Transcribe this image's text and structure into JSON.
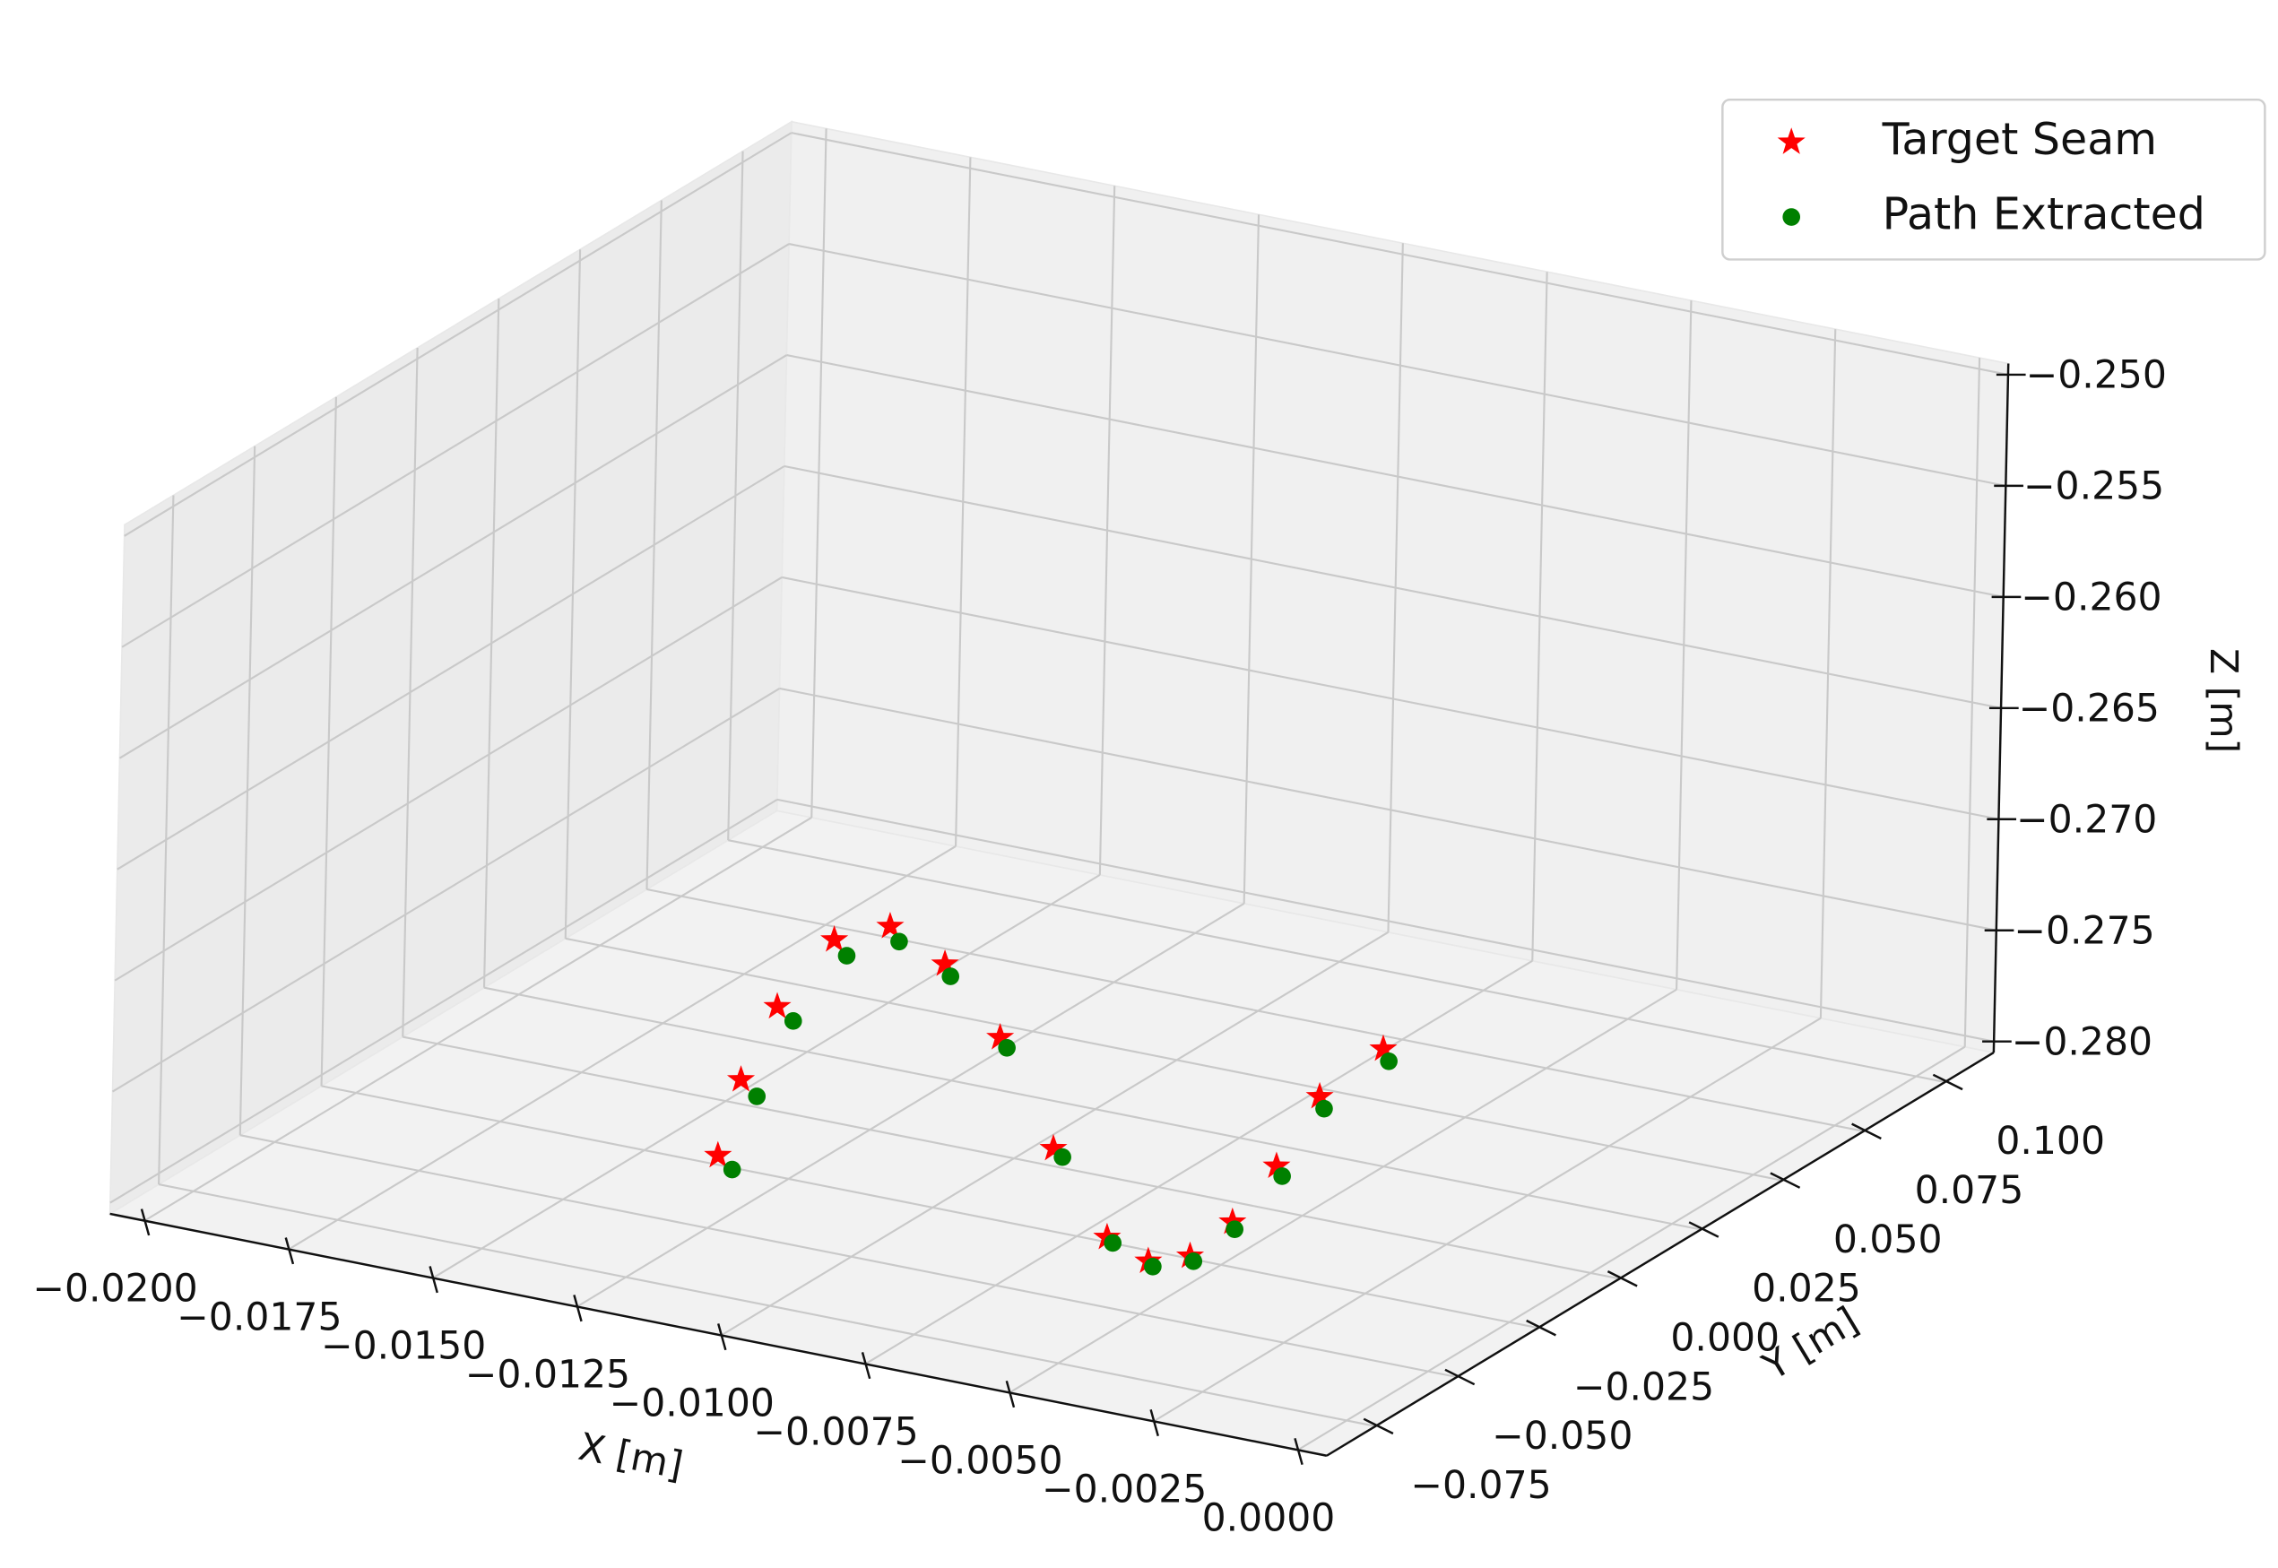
{
  "chart_data": {
    "type": "scatter3d",
    "x_label": "X [m]",
    "y_label": "Y [m]",
    "z_label": "Z [m]",
    "xlim": [
      -0.0206,
      0.0005
    ],
    "ylim": [
      -0.09,
      0.115
    ],
    "zlim": [
      -0.2805,
      -0.2495
    ],
    "xticks": [
      {
        "value": -0.02,
        "label": "−0.0200"
      },
      {
        "value": -0.0175,
        "label": "−0.0175"
      },
      {
        "value": -0.015,
        "label": "−0.0150"
      },
      {
        "value": -0.0125,
        "label": "−0.0125"
      },
      {
        "value": -0.01,
        "label": "−0.0100"
      },
      {
        "value": -0.0075,
        "label": "−0.0075"
      },
      {
        "value": -0.005,
        "label": "−0.0050"
      },
      {
        "value": -0.0025,
        "label": "−0.0025"
      },
      {
        "value": 0,
        "label": "0.0000"
      }
    ],
    "yticks": [
      {
        "value": -0.075,
        "label": "−0.075"
      },
      {
        "value": -0.05,
        "label": "−0.050"
      },
      {
        "value": -0.025,
        "label": "−0.025"
      },
      {
        "value": 0,
        "label": "0.000"
      },
      {
        "value": 0.025,
        "label": "0.025"
      },
      {
        "value": 0.05,
        "label": "0.050"
      },
      {
        "value": 0.075,
        "label": "0.075"
      },
      {
        "value": 0.1,
        "label": "0.100"
      }
    ],
    "zticks": [
      {
        "value": -0.28,
        "label": "−0.280"
      },
      {
        "value": -0.275,
        "label": "−0.275"
      },
      {
        "value": -0.27,
        "label": "−0.270"
      },
      {
        "value": -0.265,
        "label": "−0.265"
      },
      {
        "value": -0.26,
        "label": "−0.260"
      },
      {
        "value": -0.255,
        "label": "−0.255"
      },
      {
        "value": -0.25,
        "label": "−0.250"
      }
    ],
    "grid": true,
    "legend_position": "upper right",
    "series": [
      {
        "name": "Target Seam",
        "color": "#ff0000",
        "marker": "star",
        "x": [
          -0.01345,
          -0.01308,
          -0.01248,
          -0.01152,
          -0.01056,
          -0.0096,
          -0.00862,
          -0.00766,
          -0.0067,
          -0.00598,
          -0.00526,
          -0.00454,
          -0.0038,
          -0.00308,
          -0.002
        ],
        "y": [
          -0.03,
          -0.03,
          -0.03,
          -0.03,
          -0.03,
          -0.03,
          -0.03,
          -0.03,
          -0.03,
          -0.03,
          -0.03,
          -0.03,
          -0.03,
          -0.03,
          -0.03
        ],
        "z": [
          -0.2795,
          -0.2759,
          -0.2723,
          -0.2688,
          -0.2677,
          -0.2689,
          -0.2717,
          -0.2762,
          -0.2797,
          -0.2804,
          -0.2798,
          -0.2779,
          -0.275,
          -0.2715,
          -0.2688
        ]
      },
      {
        "name": "Path Extracted",
        "color": "#008000",
        "marker": "circle",
        "x": [
          -0.0132,
          -0.0128,
          -0.0122,
          -0.0113,
          -0.0104,
          -0.0095,
          -0.0085,
          -0.0075,
          -0.0066,
          -0.0059,
          -0.0052,
          -0.0045,
          -0.0037,
          -0.003,
          -0.0019
        ],
        "y": [
          -0.03,
          -0.03,
          -0.03,
          -0.03,
          -0.03,
          -0.03,
          -0.03,
          -0.03,
          -0.03,
          -0.03,
          -0.03,
          -0.03,
          -0.03,
          -0.03,
          -0.03
        ],
        "z": [
          -0.28,
          -0.2765,
          -0.2728,
          -0.2694,
          -0.2683,
          -0.2694,
          -0.2721,
          -0.2765,
          -0.2799,
          -0.2806,
          -0.28,
          -0.2782,
          -0.2754,
          -0.272,
          -0.2693
        ]
      }
    ]
  }
}
